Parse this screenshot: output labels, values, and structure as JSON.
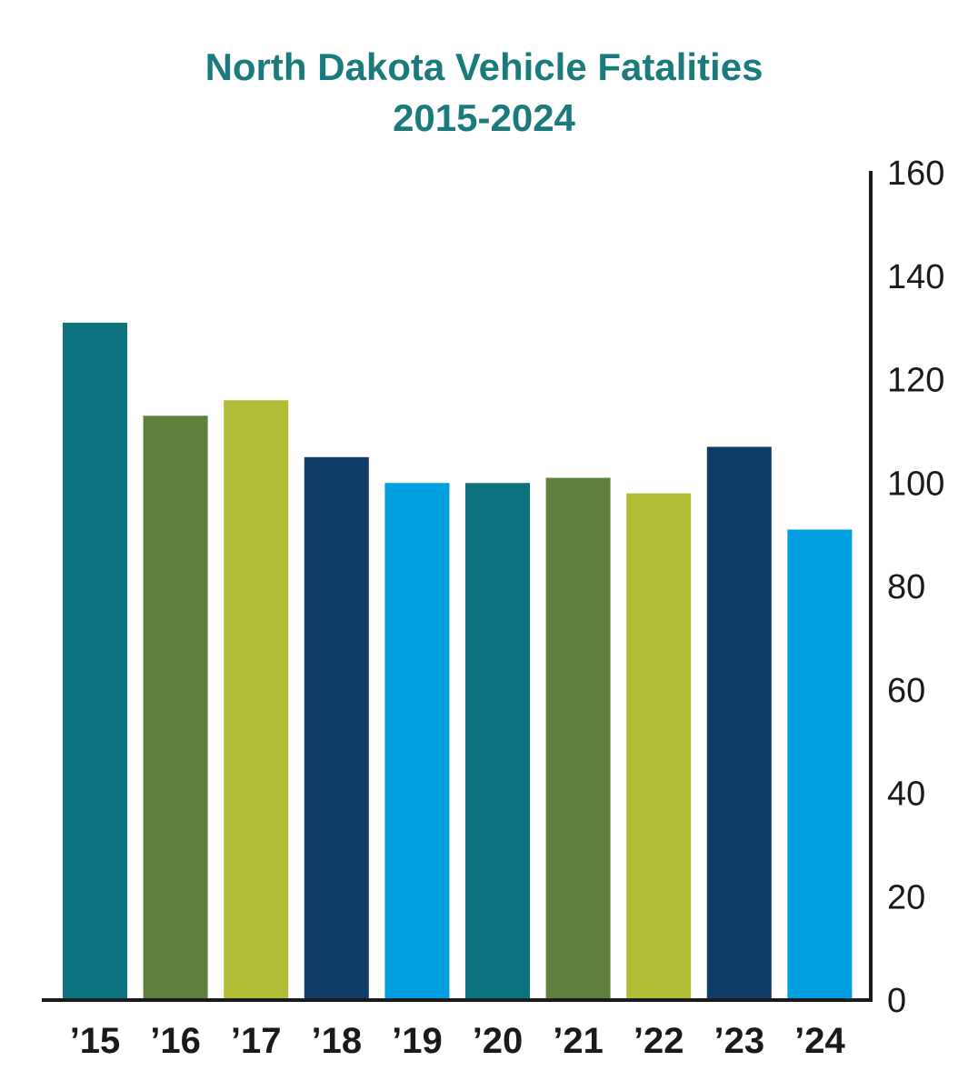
{
  "chart_data": {
    "type": "bar",
    "title": "North Dakota Vehicle Fatalities",
    "subtitle": "2015-2024",
    "categories": [
      "’15",
      "’16",
      "’17",
      "’18",
      "’19",
      "’20",
      "’21",
      "’22",
      "’23",
      "’24"
    ],
    "values": [
      131,
      113,
      116,
      105,
      100,
      100,
      101,
      98,
      107,
      91
    ],
    "colors": [
      "#0b727e",
      "#5f7f3d",
      "#b2bd36",
      "#0e3c66",
      "#009fe0",
      "#0b727e",
      "#5f7f3d",
      "#b2bd36",
      "#0e3c66",
      "#009fe0"
    ],
    "ylim": [
      0,
      160
    ],
    "yticks": [
      "0",
      "20",
      "40",
      "60",
      "80",
      "100",
      "120",
      "140",
      "160"
    ],
    "y_axis_side": "right",
    "grid": false,
    "xlabel": "",
    "ylabel": ""
  }
}
